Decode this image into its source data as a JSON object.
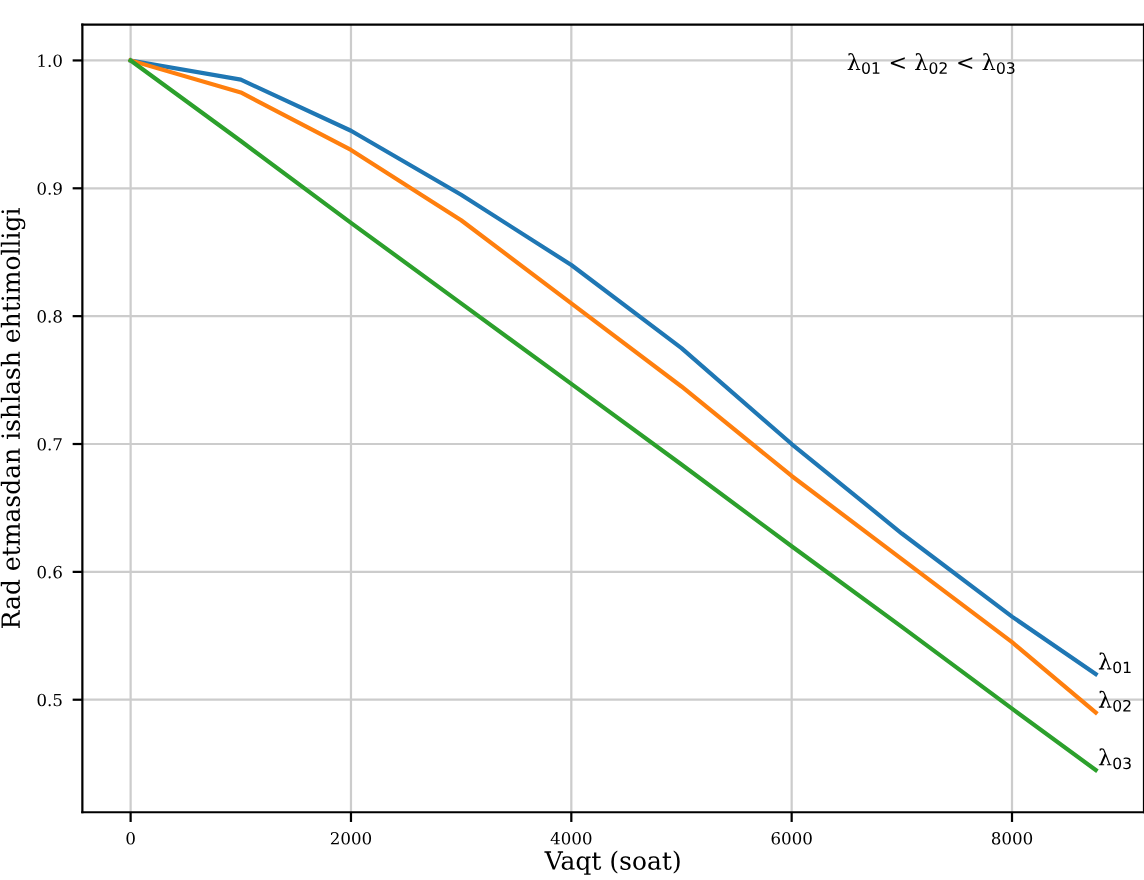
{
  "chart_data": {
    "type": "line",
    "xlabel": "Vaqt (soat)",
    "ylabel": "Rad etmasdan ishlash ehtimolligi",
    "annotations": [
      "λ$_{01}$ < λ$_{02}$ < λ$_{03}$"
    ],
    "x": [
      0,
      1000,
      2000,
      3000,
      4000,
      5000,
      6000,
      7000,
      8000,
      8760
    ],
    "series": [
      {
        "name": "λ$_{01}$",
        "color": "#1f77b4",
        "values": [
          1.0,
          0.985,
          0.945,
          0.895,
          0.84,
          0.775,
          0.7,
          0.63,
          0.565,
          0.52
        ]
      },
      {
        "name": "λ$_{02}$",
        "color": "#ff7f0e",
        "values": [
          1.0,
          0.975,
          0.93,
          0.875,
          0.81,
          0.745,
          0.675,
          0.61,
          0.545,
          0.49
        ]
      },
      {
        "name": "λ$_{03}$",
        "color": "#2ca02c",
        "values": [
          1.0,
          0.937,
          0.873,
          0.81,
          0.747,
          0.684,
          0.62,
          0.557,
          0.493,
          0.445
        ]
      }
    ],
    "xlim": [
      -438,
      9198
    ],
    "ylim": [
      0.412,
      1.028
    ],
    "xticks": [
      0,
      2000,
      4000,
      6000,
      8000
    ],
    "yticks": [
      {
        "value": 0.5,
        "label": "0.5"
      },
      {
        "value": 0.6,
        "label": "0.6"
      },
      {
        "value": 0.7,
        "label": "0.7"
      },
      {
        "value": 0.8,
        "label": "0.8"
      },
      {
        "value": 0.9,
        "label": "0.9"
      },
      {
        "value": 1.0,
        "label": "1.0"
      }
    ],
    "grid": true,
    "legend": false,
    "marker": "none",
    "line_style": "solid"
  }
}
